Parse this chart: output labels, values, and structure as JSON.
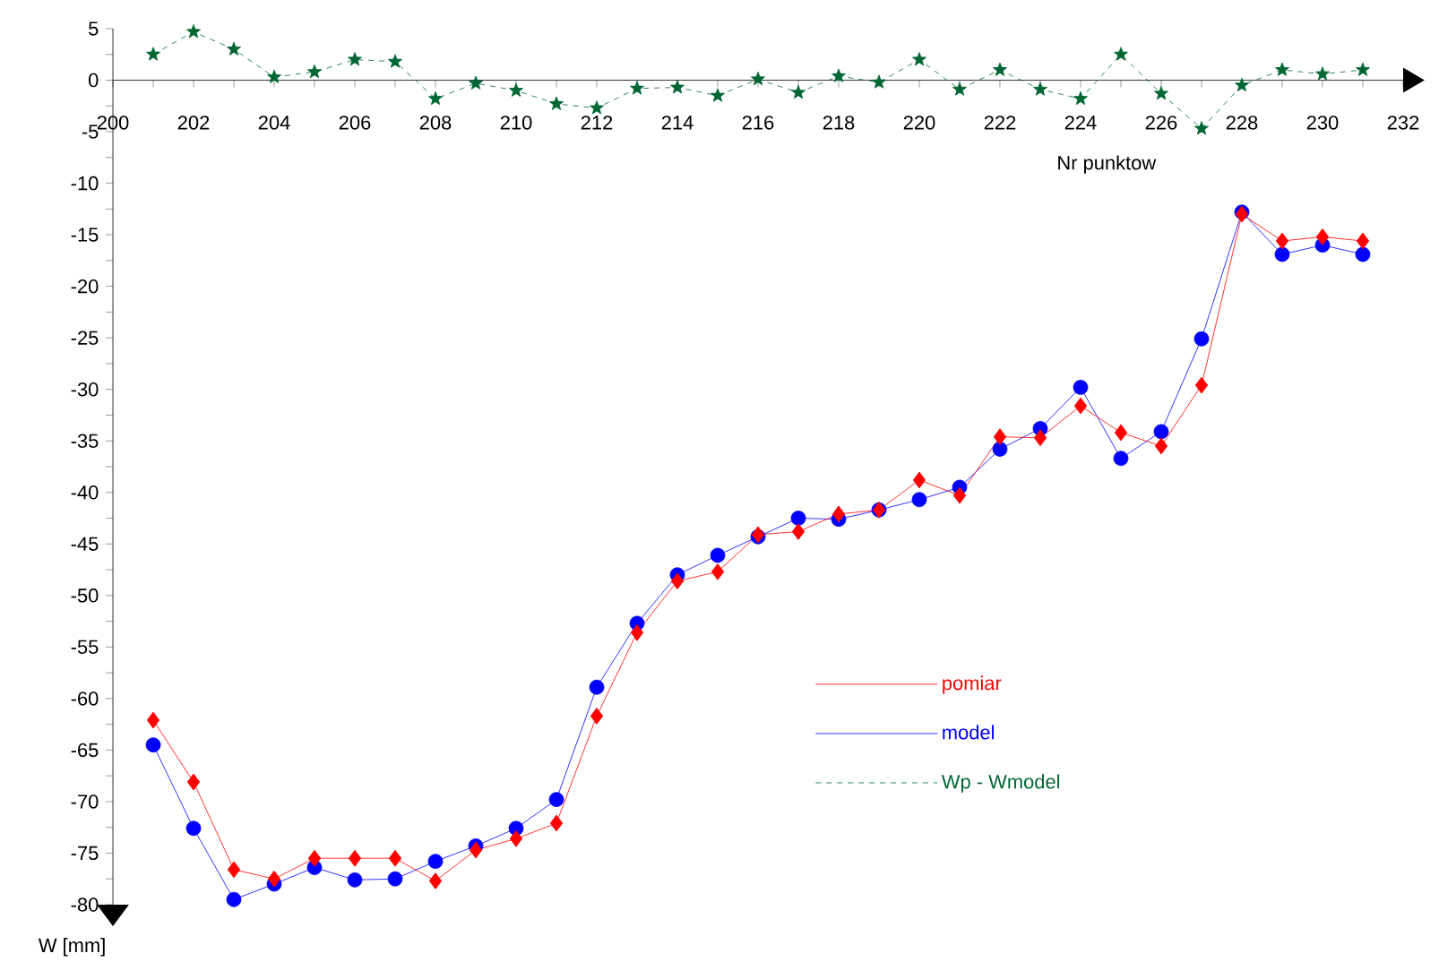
{
  "chart_data": {
    "type": "line",
    "xlabel": "Nr punktow",
    "ylabel": "W [mm]",
    "x": [
      201,
      202,
      203,
      204,
      205,
      206,
      207,
      208,
      209,
      210,
      211,
      212,
      213,
      214,
      215,
      216,
      217,
      218,
      219,
      220,
      221,
      222,
      223,
      224,
      225,
      226,
      227,
      228,
      229,
      230,
      231
    ],
    "series": [
      {
        "name": "pomiar",
        "color": "#ff0000",
        "marker": "diamond",
        "line_style": "solid",
        "values": [
          -62.1,
          -68.1,
          -76.6,
          -77.5,
          -75.5,
          -75.5,
          -75.5,
          -77.7,
          -74.7,
          -73.6,
          -72.1,
          -61.7,
          -53.6,
          -48.6,
          -47.7,
          -44.1,
          -43.8,
          -42.1,
          -41.7,
          -38.8,
          -40.3,
          -34.6,
          -34.7,
          -31.6,
          -34.2,
          -35.5,
          -29.6,
          -13.0,
          -15.6,
          -15.2,
          -15.6
        ]
      },
      {
        "name": "model",
        "color": "#0000ff",
        "marker": "circle",
        "line_style": "solid",
        "values": [
          -64.5,
          -72.6,
          -79.5,
          -78.0,
          -76.4,
          -77.6,
          -77.5,
          -75.8,
          -74.3,
          -72.6,
          -69.8,
          -58.9,
          -52.7,
          -48.0,
          -46.1,
          -44.3,
          -42.5,
          -42.6,
          -41.7,
          -40.7,
          -39.5,
          -35.8,
          -33.8,
          -29.8,
          -36.7,
          -34.1,
          -25.1,
          -12.8,
          -16.9,
          -16.0,
          -16.9
        ]
      },
      {
        "name": "Wp - Wmodel",
        "color": "#006633",
        "marker": "star",
        "line_style": "dashed",
        "values": [
          2.5,
          4.7,
          3.0,
          0.3,
          0.8,
          2.0,
          1.8,
          -1.8,
          -0.3,
          -1.0,
          -2.3,
          -2.7,
          -0.8,
          -0.7,
          -1.5,
          0.1,
          -1.2,
          0.4,
          -0.2,
          2.0,
          -0.9,
          1.0,
          -0.9,
          -1.8,
          2.5,
          -1.3,
          -4.7,
          -0.5,
          1.0,
          0.6,
          1.0
        ]
      }
    ],
    "xlim": [
      200,
      232
    ],
    "xticks": [
      200,
      {
        "value": 201,
        "label": null
      },
      202,
      {
        "value": 203,
        "label": null
      },
      204,
      {
        "value": 205,
        "label": null
      },
      206,
      {
        "value": 207,
        "label": null
      },
      208,
      {
        "value": 209,
        "label": null
      },
      210,
      {
        "value": 211,
        "label": null
      },
      212,
      {
        "value": 213,
        "label": null
      },
      214,
      {
        "value": 215,
        "label": null
      },
      216,
      {
        "value": 217,
        "label": null
      },
      218,
      {
        "value": 219,
        "label": null
      },
      220,
      {
        "value": 221,
        "label": null
      },
      222,
      {
        "value": 223,
        "label": null
      },
      224,
      {
        "value": 225,
        "label": null
      },
      226,
      {
        "value": 227,
        "label": null
      },
      228,
      {
        "value": 229,
        "label": null
      },
      230,
      {
        "value": 231,
        "label": null
      },
      232
    ],
    "ylim": [
      -80,
      5
    ],
    "yticks": [
      5,
      {
        "value": 2.5,
        "label": null
      },
      0,
      {
        "value": -2.5,
        "label": null
      },
      -5,
      {
        "value": -7.5,
        "label": null
      },
      -10,
      {
        "value": -12.5,
        "label": null
      },
      -15,
      {
        "value": -17.5,
        "label": null
      },
      -20,
      {
        "value": -22.5,
        "label": null
      },
      -25,
      {
        "value": -27.5,
        "label": null
      },
      -30,
      {
        "value": -32.5,
        "label": null
      },
      -35,
      {
        "value": -37.5,
        "label": null
      },
      -40,
      {
        "value": -42.5,
        "label": null
      },
      -45,
      {
        "value": -47.5,
        "label": null
      },
      -50,
      {
        "value": -52.5,
        "label": null
      },
      -55,
      {
        "value": -57.5,
        "label": null
      },
      -60,
      {
        "value": -62.5,
        "label": null
      },
      -65,
      {
        "value": -67.5,
        "label": null
      },
      -70,
      {
        "value": -72.5,
        "label": null
      },
      -75,
      {
        "value": -77.5,
        "label": null
      },
      -80
    ],
    "grid": false,
    "legend": "bottom right"
  }
}
